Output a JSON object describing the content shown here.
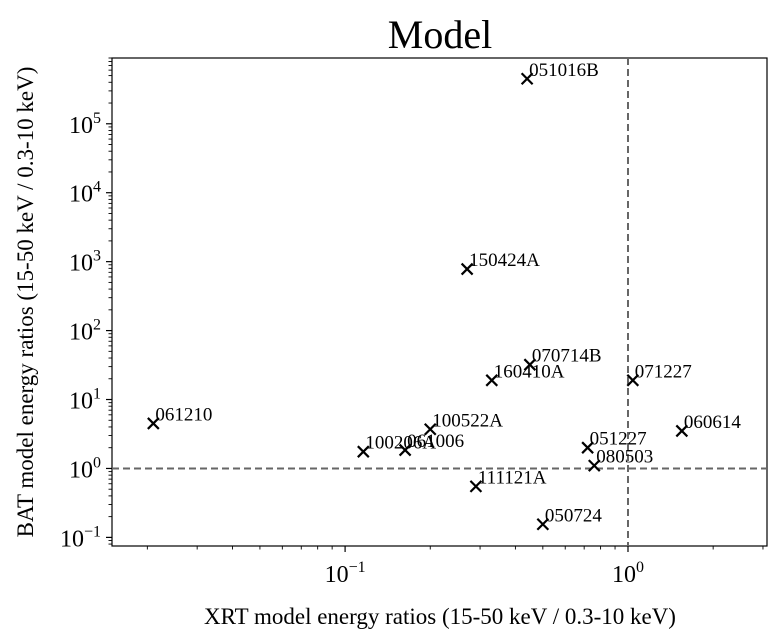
{
  "chart_data": {
    "type": "scatter",
    "title": "Model",
    "xlabel": "XRT model energy ratios (15-50 keV / 0.3-10 keV)",
    "ylabel": "BAT model energy ratios (15-50 keV / 0.3-10 keV)",
    "xscale": "log",
    "yscale": "log",
    "xlim": [
      0.015,
      3.1
    ],
    "ylim": [
      0.075,
      900000
    ],
    "x_ticks": [
      {
        "value": 0.1,
        "base": "10",
        "exp": "−1"
      },
      {
        "value": 1,
        "base": "10",
        "exp": "0"
      }
    ],
    "y_ticks": [
      {
        "value": 0.1,
        "base": "10",
        "exp": "−1"
      },
      {
        "value": 1,
        "base": "10",
        "exp": "0"
      },
      {
        "value": 10,
        "base": "10",
        "exp": "1"
      },
      {
        "value": 100,
        "base": "10",
        "exp": "2"
      },
      {
        "value": 1000,
        "base": "10",
        "exp": "3"
      },
      {
        "value": 10000,
        "base": "10",
        "exp": "4"
      },
      {
        "value": 100000,
        "base": "10",
        "exp": "5"
      }
    ],
    "reference_lines": [
      {
        "orientation": "vertical",
        "value": 1.0,
        "style": "dashed",
        "color": "#666666"
      },
      {
        "orientation": "horizontal",
        "value": 1.0,
        "style": "dashed",
        "color": "#666666"
      }
    ],
    "marker": "x",
    "marker_color": "#000000",
    "points": [
      {
        "label": "051016B",
        "x": 0.44,
        "y": 450000
      },
      {
        "label": "150424A",
        "x": 0.27,
        "y": 780
      },
      {
        "label": "070714B",
        "x": 0.45,
        "y": 32
      },
      {
        "label": "160410A",
        "x": 0.33,
        "y": 19
      },
      {
        "label": "071227",
        "x": 1.04,
        "y": 19
      },
      {
        "label": "061210",
        "x": 0.021,
        "y": 4.5
      },
      {
        "label": "100522A",
        "x": 0.2,
        "y": 3.7
      },
      {
        "label": "060614",
        "x": 1.55,
        "y": 3.5
      },
      {
        "label": "100206A",
        "x": 0.116,
        "y": 1.75
      },
      {
        "label": "061006",
        "x": 0.163,
        "y": 1.85
      },
      {
        "label": "051227",
        "x": 0.72,
        "y": 2.0
      },
      {
        "label": "080503",
        "x": 0.76,
        "y": 1.1
      },
      {
        "label": "111121A",
        "x": 0.29,
        "y": 0.55
      },
      {
        "label": "050724",
        "x": 0.5,
        "y": 0.155
      }
    ]
  }
}
